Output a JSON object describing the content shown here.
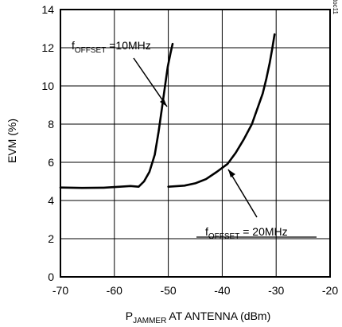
{
  "chart_data": {
    "type": "line",
    "xlabel": {
      "prefix": "P",
      "subscript": "JAMMER",
      "suffix": " AT ANTENNA (dBm)"
    },
    "ylabel": "EVM (%)",
    "xlim": [
      -70,
      -20
    ],
    "ylim": [
      0,
      14
    ],
    "xticks": [
      -70,
      -60,
      -50,
      -40,
      -30,
      -20
    ],
    "yticks": [
      0,
      2,
      4,
      6,
      8,
      10,
      12,
      14
    ],
    "x_tick_labels": [
      "-70",
      "-60",
      "-50",
      "-40",
      "-30",
      "-20"
    ],
    "y_tick_labels": [
      "0",
      "2",
      "4",
      "6",
      "8",
      "10",
      "12",
      "14"
    ],
    "grid": true,
    "figure_id": "MAX2839 toc11",
    "series": [
      {
        "x": [
          -70,
          -66,
          -62,
          -59,
          -57,
          -55.5,
          -54.5,
          -53.5,
          -52.5,
          -51.8,
          -51.2,
          -50.6,
          -50.1,
          -49.6,
          -49.2
        ],
        "y": [
          4.68,
          4.66,
          4.67,
          4.72,
          4.76,
          4.72,
          5.0,
          5.5,
          6.4,
          7.6,
          8.8,
          10.0,
          11.0,
          11.7,
          12.2
        ]
      },
      {
        "x": [
          -50,
          -47,
          -45,
          -43,
          -41,
          -39,
          -37.5,
          -36,
          -34.5,
          -33.5,
          -32.5,
          -31.8,
          -31.2,
          -30.7,
          -30.3
        ],
        "y": [
          4.72,
          4.78,
          4.9,
          5.12,
          5.5,
          5.92,
          6.5,
          7.2,
          8.0,
          8.8,
          9.6,
          10.4,
          11.2,
          12.0,
          12.7
        ]
      }
    ],
    "annotations": [
      {
        "prefix": "f",
        "subscript": "OFFSET",
        "suffix": " =10MHz"
      },
      {
        "prefix": "f",
        "subscript": "OFFSET",
        "suffix": " = 20MHz"
      }
    ]
  }
}
